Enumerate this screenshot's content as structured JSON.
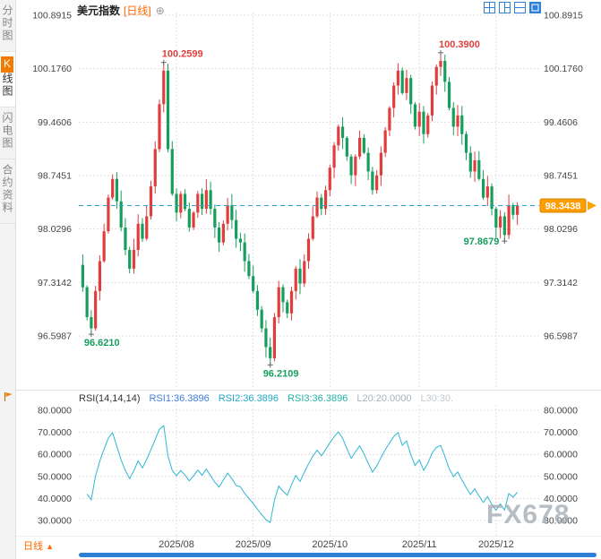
{
  "header": {
    "symbol": "美元指数",
    "period_tag": "[日线]",
    "add_indicator_icon": "⊕"
  },
  "sidebar": {
    "tabs": [
      {
        "label": "分时图"
      },
      {
        "first": "K",
        "rest": "线图"
      },
      {
        "label": "闪电图"
      },
      {
        "label": "合约资料"
      }
    ]
  },
  "footer": {
    "period_label": "日线",
    "period_arrow": "▲"
  },
  "watermark": "FX678",
  "colors": {
    "up": "#e23d3d",
    "down": "#169e5c",
    "accent": "#ff6600",
    "last_price_bg": "#ff9d00",
    "dashed_line": "#2ba3cf",
    "rsi_line": "#2fb7d4",
    "scrollbar": "#2e7fd6",
    "icon_blue": "#2f80d8",
    "tab_highlight": "#f07b00"
  },
  "chart_data": {
    "type": "candlestick+rsi",
    "title": "美元指数 日线",
    "up_color": "#e23d3d",
    "down_color": "#169e5c",
    "price_panel": {
      "y_ticks": [
        "100.8915",
        "100.1760",
        "99.4606",
        "98.7451",
        "98.0296",
        "97.3142",
        "96.5987"
      ],
      "first_open": 97.55,
      "closes": [
        97.25,
        96.85,
        96.7,
        97.2,
        97.6,
        98.0,
        98.45,
        98.7,
        98.4,
        98.05,
        97.75,
        97.5,
        97.75,
        98.1,
        97.9,
        98.2,
        98.6,
        99.1,
        99.7,
        100.15,
        99.1,
        98.5,
        98.25,
        98.5,
        98.3,
        98.05,
        98.25,
        98.5,
        98.3,
        98.55,
        98.3,
        98.05,
        97.85,
        98.1,
        98.35,
        98.15,
        97.9,
        97.85,
        97.6,
        97.4,
        97.2,
        96.95,
        96.7,
        96.45,
        96.3,
        96.85,
        97.25,
        97.05,
        96.9,
        97.2,
        97.5,
        97.3,
        97.6,
        97.9,
        98.2,
        98.45,
        98.3,
        98.55,
        98.85,
        99.15,
        99.4,
        99.25,
        99.0,
        98.75,
        99.0,
        99.25,
        99.05,
        98.8,
        98.55,
        98.75,
        99.05,
        99.35,
        99.65,
        99.95,
        100.15,
        99.85,
        100.05,
        99.7,
        99.4,
        99.6,
        99.3,
        99.55,
        99.95,
        100.2,
        100.28,
        100.0,
        99.65,
        99.4,
        99.55,
        99.3,
        99.05,
        98.8,
        98.95,
        98.7,
        98.45,
        98.6,
        98.3,
        98.05,
        98.2,
        97.95,
        98.35,
        98.22,
        98.3438
      ],
      "wick_overrides": [
        {
          "i": 2,
          "low": 96.621
        },
        {
          "i": 19,
          "high": 100.2599
        },
        {
          "i": 44,
          "low": 96.2109
        },
        {
          "i": 84,
          "high": 100.39
        },
        {
          "i": 99,
          "low": 97.8679
        }
      ],
      "annotations": [
        {
          "i": 2,
          "text": "96.6210",
          "kind": "low",
          "color": "#169e5c"
        },
        {
          "i": 19,
          "text": "100.2599",
          "kind": "high",
          "color": "#e23d3d"
        },
        {
          "i": 44,
          "text": "96.2109",
          "kind": "low",
          "color": "#169e5c"
        },
        {
          "i": 84,
          "text": "100.3900",
          "kind": "high",
          "color": "#e23d3d"
        },
        {
          "i": 99,
          "text": "97.8679",
          "kind": "low-left",
          "color": "#169e5c"
        }
      ],
      "last_price": "98.3438",
      "last_price_value": 98.3438
    },
    "x_axis": {
      "months": [
        {
          "label": "2025/08",
          "i": 22
        },
        {
          "label": "2025/09",
          "i": 40
        },
        {
          "label": "2025/10",
          "i": 58
        },
        {
          "label": "2025/11",
          "i": 79
        },
        {
          "label": "2025/12",
          "i": 97
        }
      ]
    },
    "rsi_panel": {
      "header": [
        {
          "text": "RSI(14,14,14)",
          "color": "#333333"
        },
        {
          "text": "RSI1:36.3896",
          "color": "#3e7fd8"
        },
        {
          "text": "RSI2:36.3896",
          "color": "#1fa8c9"
        },
        {
          "text": "RSI3:36.3896",
          "color": "#23b2a6"
        },
        {
          "text": "L20:20.0000",
          "color": "#aab2b8"
        },
        {
          "text": "L30:30.",
          "color": "#c3cad0"
        }
      ],
      "period": 14,
      "y_ticks": [
        "80.0000",
        "70.0000",
        "60.0000",
        "50.0000",
        "40.0000",
        "30.0000"
      ],
      "line_color": "#2fb7d4"
    }
  }
}
